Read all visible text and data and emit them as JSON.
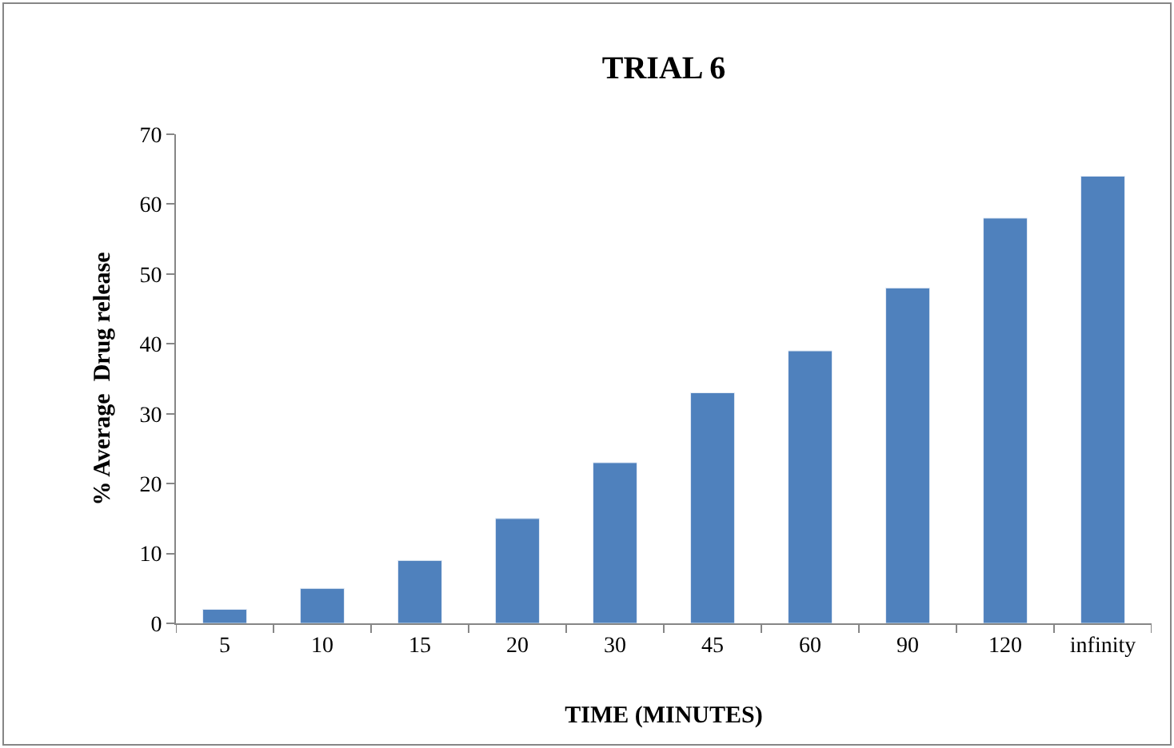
{
  "chart_data": {
    "type": "bar",
    "title": "TRIAL 6",
    "xlabel": "TIME (MINUTES)",
    "ylabel": "% Average  Drug release",
    "categories": [
      "5",
      "10",
      "15",
      "20",
      "30",
      "45",
      "60",
      "90",
      "120",
      "infinity"
    ],
    "values": [
      2,
      5,
      9,
      15,
      23,
      33,
      39,
      48,
      58,
      64
    ],
    "color": "#4f81bd",
    "ylim": [
      0,
      70
    ],
    "yticks": [
      0,
      10,
      20,
      30,
      40,
      50,
      60,
      70
    ],
    "grid": false,
    "legend": false
  }
}
